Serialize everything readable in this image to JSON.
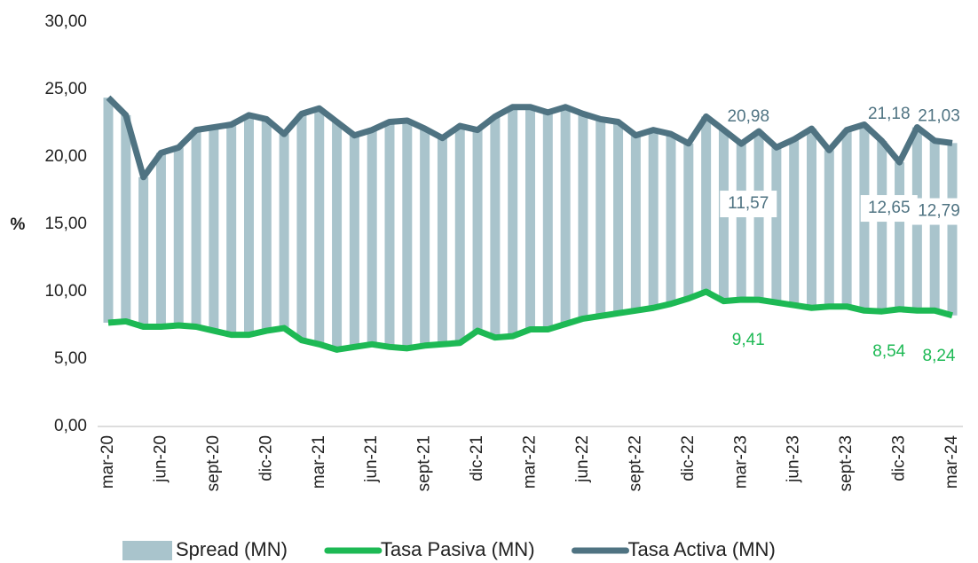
{
  "chart_data": {
    "type": "bar_line",
    "y_label": "%",
    "categories": [
      "mar-20",
      null,
      null,
      "jun-20",
      null,
      null,
      "sept-20",
      null,
      null,
      "dic-20",
      null,
      null,
      "mar-21",
      null,
      null,
      "jun-21",
      null,
      null,
      "sept-21",
      null,
      null,
      "dic-21",
      null,
      null,
      "mar-22",
      null,
      null,
      "jun-22",
      null,
      null,
      "sept-22",
      null,
      null,
      "dic-22",
      null,
      null,
      "mar-23",
      null,
      null,
      "jun-23",
      null,
      null,
      "sept-23",
      null,
      null,
      "dic-23",
      null,
      null,
      "mar-24"
    ],
    "series": [
      {
        "name": "Spread (MN)",
        "kind": "bar",
        "color": "#a9c4cc",
        "values": [
          16.7,
          15.3,
          11.1,
          12.9,
          13.2,
          14.6,
          15.1,
          15.6,
          16.3,
          15.7,
          14.4,
          16.8,
          17.5,
          16.9,
          15.7,
          15.9,
          16.7,
          16.9,
          16.1,
          15.3,
          16.1,
          14.9,
          16.4,
          17.0,
          16.5,
          16.1,
          16.1,
          15.2,
          14.6,
          14.2,
          13.0,
          13.2,
          12.6,
          11.5,
          13.0,
          12.7,
          11.57,
          12.5,
          11.5,
          12.3,
          13.3,
          11.6,
          13.1,
          13.8,
          12.65,
          10.9,
          13.6,
          12.6,
          12.79
        ],
        "value_labels": [
          null,
          null,
          null,
          null,
          null,
          null,
          null,
          null,
          null,
          null,
          null,
          null,
          null,
          null,
          null,
          null,
          null,
          null,
          null,
          null,
          null,
          null,
          null,
          null,
          null,
          null,
          null,
          null,
          null,
          null,
          null,
          null,
          null,
          null,
          null,
          null,
          "11,57",
          null,
          null,
          null,
          null,
          null,
          null,
          null,
          "12,65",
          null,
          null,
          null,
          "12,79"
        ]
      },
      {
        "name": "Tasa Pasiva (MN)",
        "kind": "line",
        "color": "#1db954",
        "values": [
          7.7,
          7.8,
          7.4,
          7.4,
          7.5,
          7.4,
          7.1,
          6.8,
          6.8,
          7.1,
          7.3,
          6.4,
          6.1,
          5.7,
          5.9,
          6.1,
          5.9,
          5.8,
          6.0,
          6.1,
          6.2,
          7.1,
          6.6,
          6.7,
          7.2,
          7.2,
          7.6,
          8.0,
          8.2,
          8.4,
          8.6,
          8.8,
          9.1,
          9.5,
          10.0,
          9.3,
          9.41,
          9.4,
          9.2,
          9.0,
          8.8,
          8.9,
          8.9,
          8.6,
          8.54,
          8.7,
          8.6,
          8.6,
          8.24
        ],
        "value_labels": [
          null,
          null,
          null,
          null,
          null,
          null,
          null,
          null,
          null,
          null,
          null,
          null,
          null,
          null,
          null,
          null,
          null,
          null,
          null,
          null,
          null,
          null,
          null,
          null,
          null,
          null,
          null,
          null,
          null,
          null,
          null,
          null,
          null,
          null,
          null,
          null,
          "9,41",
          null,
          null,
          null,
          null,
          null,
          null,
          null,
          "8,54",
          null,
          null,
          null,
          "8,24"
        ]
      },
      {
        "name": "Tasa Activa (MN)",
        "kind": "line",
        "color": "#4f7382",
        "values": [
          24.4,
          23.1,
          18.5,
          20.3,
          20.7,
          22.0,
          22.2,
          22.4,
          23.1,
          22.8,
          21.7,
          23.2,
          23.6,
          22.6,
          21.6,
          22.0,
          22.6,
          22.7,
          22.1,
          21.4,
          22.3,
          22.0,
          23.0,
          23.7,
          23.7,
          23.3,
          23.7,
          23.2,
          22.8,
          22.6,
          21.6,
          22.0,
          21.7,
          21.0,
          23.0,
          22.0,
          20.98,
          21.9,
          20.7,
          21.3,
          22.1,
          20.5,
          22.0,
          22.4,
          21.18,
          19.6,
          22.2,
          21.2,
          21.03
        ],
        "value_labels": [
          null,
          null,
          null,
          null,
          null,
          null,
          null,
          null,
          null,
          null,
          null,
          null,
          null,
          null,
          null,
          null,
          null,
          null,
          null,
          null,
          null,
          null,
          null,
          null,
          null,
          null,
          null,
          null,
          null,
          null,
          null,
          null,
          null,
          null,
          null,
          null,
          "20,98",
          null,
          null,
          null,
          null,
          null,
          null,
          null,
          "21,18",
          null,
          null,
          null,
          "21,03"
        ]
      }
    ],
    "ylim": [
      0,
      30
    ],
    "yticks": [
      {
        "value": 0,
        "label": "0,00"
      },
      {
        "value": 5,
        "label": "5,00"
      },
      {
        "value": 10,
        "label": "10,00"
      },
      {
        "value": 15,
        "label": "15,00"
      },
      {
        "value": 20,
        "label": "20,00"
      },
      {
        "value": 25,
        "label": "25,00"
      },
      {
        "value": 30,
        "label": "30,00"
      }
    ],
    "legend": "bottom"
  }
}
